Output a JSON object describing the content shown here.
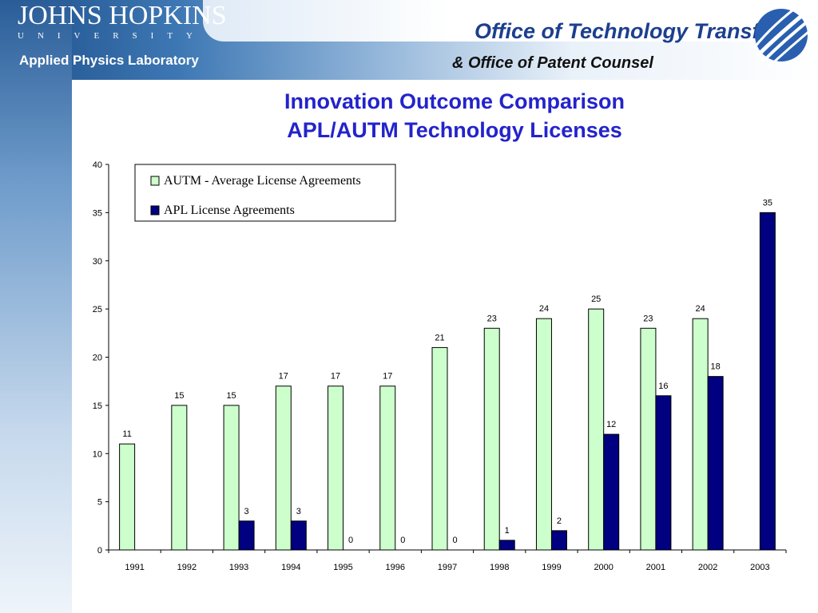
{
  "header": {
    "org_name": "JOHNS HOPKINS",
    "org_sub": "UNIVERSITY",
    "lab_name": "Applied Physics Laboratory",
    "office_title": "Office of Technology Transfer",
    "office_subtitle": "& Office of Patent Counsel"
  },
  "colors": {
    "autm_fill": "#ccffcc",
    "apl_fill": "#000080",
    "title_color": "#2323cc",
    "header_blue": "#1c3f8f"
  },
  "chart_data": {
    "type": "bar",
    "title": "Innovation Outcome Comparison",
    "subtitle": "APL/AUTM Technology Licenses",
    "categories": [
      "1991",
      "1992",
      "1993",
      "1994",
      "1995",
      "1996",
      "1997",
      "1998",
      "1999",
      "2000",
      "2001",
      "2002",
      "2003"
    ],
    "series": [
      {
        "name": "AUTM - Average License Agreements",
        "color": "#ccffcc",
        "values": [
          11,
          15,
          15,
          17,
          17,
          17,
          21,
          23,
          24,
          25,
          23,
          24,
          null
        ]
      },
      {
        "name": "APL License Agreements",
        "color": "#000080",
        "values": [
          null,
          null,
          3,
          3,
          0,
          0,
          0,
          1,
          2,
          12,
          16,
          18,
          35
        ]
      }
    ],
    "ylim": [
      0,
      40
    ],
    "yticks": [
      0,
      5,
      10,
      15,
      20,
      25,
      30,
      35,
      40
    ],
    "xlabel": "",
    "ylabel": "",
    "legend_position": "top-left",
    "grid": false
  }
}
